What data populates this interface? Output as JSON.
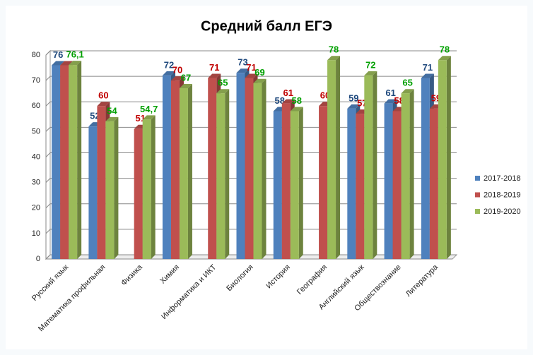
{
  "chart_data": {
    "type": "bar3d",
    "title": "Средний балл ЕГЭ",
    "categories": [
      "Русский язык",
      "Математика профильная",
      "Физика",
      "Химия",
      "Информатика и ИКТ",
      "Биология",
      "История",
      "География",
      "Английский язык",
      "Обществознание",
      "Литература"
    ],
    "series": [
      {
        "name": "2017-2018",
        "color": "#4f81bd",
        "label_color": "#1f497d",
        "values": [
          76,
          52,
          null,
          72,
          null,
          73,
          58,
          null,
          59,
          61,
          71
        ]
      },
      {
        "name": "2018-2019",
        "color": "#c0504d",
        "label_color": "#c00000",
        "values": [
          76,
          60,
          51,
          70,
          71,
          71,
          61,
          60,
          57,
          58,
          59
        ],
        "value_labels": [
          null,
          "60",
          "51",
          "70",
          "71",
          "71",
          "61",
          "60",
          "57",
          "58",
          "59"
        ]
      },
      {
        "name": "2019-2020",
        "color": "#9bbb59",
        "label_color": "#00a000",
        "values": [
          76.1,
          54,
          54.7,
          67,
          65,
          69,
          58,
          78,
          72,
          65,
          78
        ],
        "value_labels": [
          "76,1",
          "54",
          "54,7",
          "67",
          "65",
          "69",
          "58",
          "78",
          "72",
          "65",
          "78"
        ]
      }
    ],
    "ylim": [
      0,
      80
    ],
    "yticks": [
      0,
      10,
      20,
      30,
      40,
      50,
      60,
      70,
      80
    ],
    "grid": true,
    "legend": "right"
  }
}
